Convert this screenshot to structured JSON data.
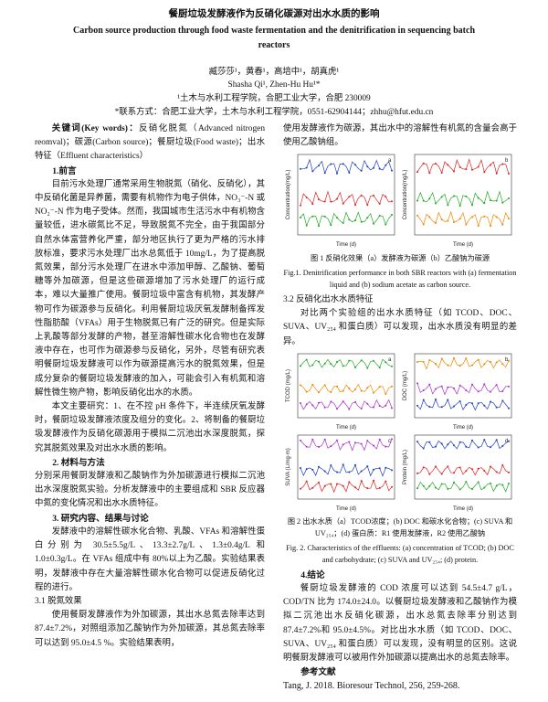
{
  "header": {
    "title_cn": "餐厨垃圾发酵液作为反硝化碳源对出水水质的影响",
    "title_en": "Carbon source production through food waste fermentation and the denitrification in sequencing batch reactors",
    "authors_cn": "臧莎莎¹，黄春¹，高培中¹，胡真虎¹",
    "authors_en": "Shasha Qi¹, Zhen-Hu Hu¹*",
    "affiliation": "¹土木与水利工程学院，合肥工业大学，合肥 230009",
    "contact": "*联系方式：合肥工业大学，土木与水利工程学院，0551-62904144；zhhu@hfut.edu.cn"
  },
  "keywords": {
    "label": "关键词(Key words)：",
    "text": "反硝化脱氮（Advanced nitrogen reomval)；碳源(Carbon source)；餐厨垃圾(Food waste)；出水特征（Effluent characteristics）"
  },
  "intro": {
    "heading": "1.前言",
    "paragraphs": [
      "目前污水处理厂通常采用生物脱氮（硝化、反硝化），其中反硝化菌是异养菌，需要有机物作为电子供体，NO₃⁻-N 或 NO₂⁻-N 作为电子受体。然而，我国城市生活污水中有机物含量较低，进水碳氮比不足，导致脱氮不完全，由于我国部分自然水体富营养化严重，部分地区执行了更为严格的污水排放标准，要求污水处理厂出水总氮低于 10mg/L，为了提高脱氮效果，部分污水处理厂在进水中添加甲醇、乙酸钠、葡萄糖等外加碳源，但是这些碳源增加了污水处理厂的运行成本，难以大量推广使用。餐厨垃圾中富含有机物，其发酵产物可作为碳源参与反硝化。利用餐厨垃圾厌氧发酵制备挥发性脂肪酸（VFAs）用于生物脱氮已有广泛的研究。但是实际上乳酸等部分发酵的产物，甚至溶解性碳水化合物也在发酵液中存在，也可作为碳源参与反硝化，另外，尽管有研究表明餐厨垃圾发酵液可以作为碳源提高污水的脱氮效果，但是成分复杂的餐厨垃圾发酵液的加入，可能会引入有机氮和溶解性微生物产物，影响反硝化出水的水质。",
      "本文主要研究：1、在不控 pH 条件下，半连续厌氧发酵时，餐厨垃圾发酵液浓度及组分的变化。2、将制备的餐厨垃圾发酵液作为反硝化碳源用于模拟二沉池出水深度脱氮，探究其脱氮效果及对出水水质的影响。"
    ]
  },
  "methods": {
    "heading": "2. 材料与方法",
    "text": "分别采用餐厨发酵液和乙酸钠作为外加碳源进行模拟二沉池出水深度脱氮实验。分析发酵液中的主要组成和 SBR 反应器中氮的变化情况和出水水质特征。"
  },
  "results": {
    "heading": "3. 研究内容、结果与讨论",
    "text": "发酵液中的溶解性碳水化合物、乳酸、VFAs 和溶解性蛋白分别为 30.5±5.5g/L、13.3±2.7g/L、1.3±0.4g/L 和 1.0±0.3g/L。在 VFAs 组成中有 80%以上为乙酸。实验结果表明，发酵液中存在大量溶解性碳水化合物可以促进反硝化过程的进行。",
    "sub1_heading": "3.1 脱氮效果",
    "sub1_text_parts": [
      "使用餐厨发酵液作为外加碳源，其出水总氮去除率达到 87.4±7.2%，对照组添加乙酸钠作为外加碳源，其总氮去除率可以达到 95.0±4.5 %。实验结果表明，",
      "使用发酵液作为碳源，其出水中的溶解性有机氮的含量会高于使用乙酸钠组。"
    ],
    "sub2_heading": "3.2 反硝化出水水质特征",
    "sub2_text": "对比两个实验组的出水水质特征（如 TCOD、DOC、SUVA、UV₂₅₄ 和蛋白质）可以发现，出水水质没有明显的差异。"
  },
  "figure1": {
    "panels": [
      {
        "label": "a",
        "xlabel": "Time (d)",
        "ylabel": "Concentration(mg/L)"
      },
      {
        "label": "b",
        "xlabel": "Time (d)",
        "ylabel": "Concentration(mg/L)"
      }
    ],
    "caption_cn": "图 1 反硝化效果（a）发酵液为碳源（b）乙酸钠为碳源",
    "caption_en": "Fig.1. Denitrification performance in both SBR reactors with (a) fermentation liquid and (b) sodium acetate as carbon source."
  },
  "figure2": {
    "panels": [
      {
        "label": "a",
        "xlabel": "Time (d)",
        "ylabel": "TCOD (mg/L)"
      },
      {
        "label": "b",
        "xlabel": "Time (d)",
        "ylabel": "DOC (mg/L)"
      },
      {
        "label": "c",
        "xlabel": "Time (d)",
        "ylabel": "SUVA (L/mg·m)"
      },
      {
        "label": "d",
        "xlabel": "Time (d)",
        "ylabel": "Protein (mg/L)"
      }
    ],
    "caption_cn": "图 2 出水水质（a）TCOD浓度；(b) DOC 和碳水化合物；(c) SUVA 和 UV₂₅₄；(d) 蛋白质：R1 使用发酵液，R2 使用乙酸钠",
    "caption_en": "Fig. 2. Characteristics of the effluents: (a) concentration of TCOD; (b) DOC and carbohydrate; (c) SUVA and UV₂₅₄; (d) protein."
  },
  "conclusion": {
    "heading": "4.结论",
    "text": "餐厨垃圾发酵液的 COD 浓度可以达到 54.5±4.7 g/L， COD/TN 比为 174.0±24.0。以餐厨垃圾发酵液和乙酸钠作为模拟二沉池出水反硝化碳源，出水总氮去除率分别达到 87.4±7.2%和 95.0±4.5%。对比出水水质（如 TCOD、DOC、SUVA、UV₂₅₄ 和蛋白质）可以发现，没有明显的区别。这说明餐厨发酵液可以被用作外加碳源以提高出水的总氮去除率。"
  },
  "references": {
    "heading": "参考文献",
    "items": [
      "Tang, J. 2018. Bioresour Technol, 256, 259-268."
    ]
  }
}
